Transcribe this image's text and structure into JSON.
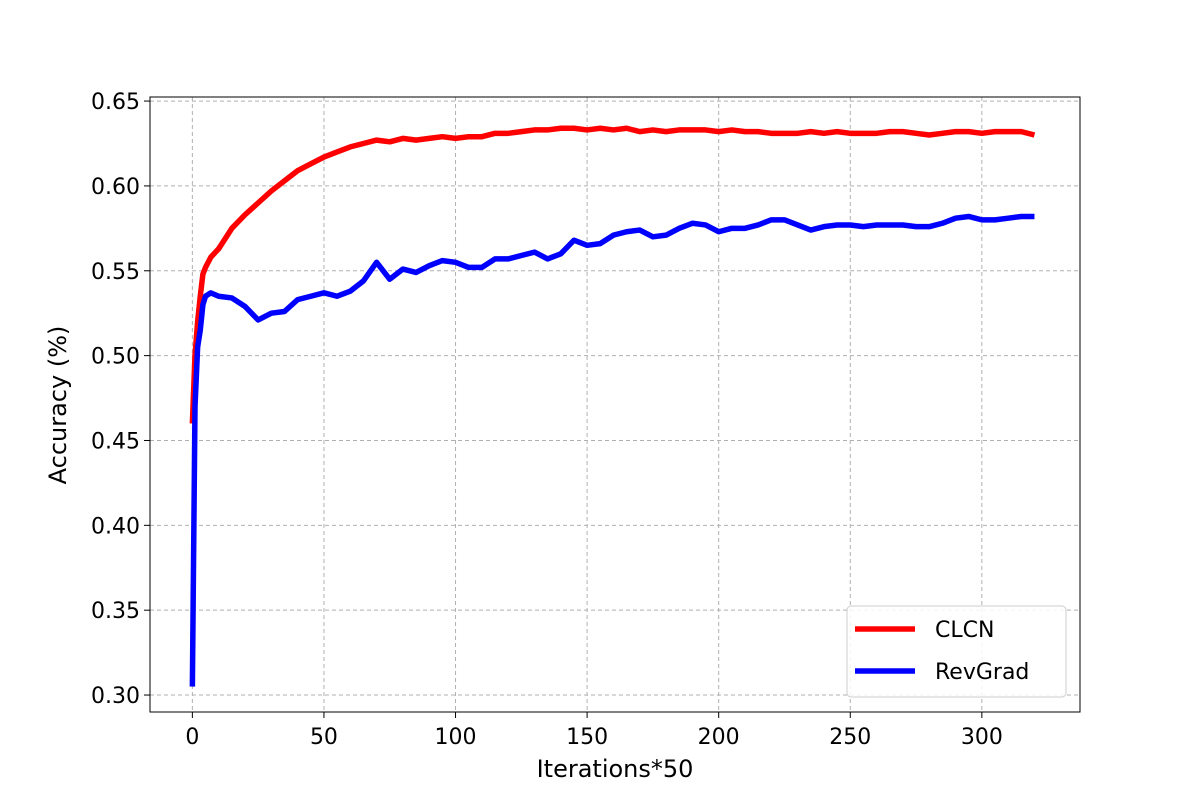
{
  "chart_data": {
    "type": "line",
    "xlabel": "Iterations*50",
    "ylabel": "Accuracy (%)",
    "x": [
      0,
      1,
      2,
      3,
      4,
      5,
      7,
      10,
      15,
      20,
      25,
      30,
      35,
      40,
      45,
      50,
      55,
      60,
      65,
      70,
      75,
      80,
      85,
      90,
      95,
      100,
      105,
      110,
      115,
      120,
      125,
      130,
      135,
      140,
      145,
      150,
      155,
      160,
      165,
      170,
      175,
      180,
      185,
      190,
      195,
      200,
      205,
      210,
      215,
      220,
      225,
      230,
      235,
      240,
      245,
      250,
      255,
      260,
      265,
      270,
      275,
      280,
      285,
      290,
      295,
      300,
      305,
      310,
      315,
      320
    ],
    "series": [
      {
        "name": "CLCN",
        "color": "#ff0000",
        "values": [
          0.46,
          0.5,
          0.52,
          0.535,
          0.548,
          0.552,
          0.558,
          0.563,
          0.575,
          0.583,
          0.59,
          0.597,
          0.603,
          0.609,
          0.613,
          0.617,
          0.62,
          0.623,
          0.625,
          0.627,
          0.626,
          0.628,
          0.627,
          0.628,
          0.629,
          0.628,
          0.629,
          0.629,
          0.631,
          0.631,
          0.632,
          0.633,
          0.633,
          0.634,
          0.634,
          0.633,
          0.634,
          0.633,
          0.634,
          0.632,
          0.633,
          0.632,
          0.633,
          0.633,
          0.633,
          0.632,
          0.633,
          0.632,
          0.632,
          0.631,
          0.631,
          0.631,
          0.632,
          0.631,
          0.632,
          0.631,
          0.631,
          0.631,
          0.632,
          0.632,
          0.631,
          0.63,
          0.631,
          0.632,
          0.632,
          0.631,
          0.632,
          0.632,
          0.632,
          0.63
        ]
      },
      {
        "name": "RevGrad",
        "color": "#0000ff",
        "values": [
          0.305,
          0.47,
          0.505,
          0.515,
          0.53,
          0.535,
          0.537,
          0.535,
          0.534,
          0.529,
          0.521,
          0.525,
          0.526,
          0.533,
          0.535,
          0.537,
          0.535,
          0.538,
          0.544,
          0.555,
          0.545,
          0.551,
          0.549,
          0.553,
          0.556,
          0.555,
          0.552,
          0.552,
          0.557,
          0.557,
          0.559,
          0.561,
          0.557,
          0.56,
          0.568,
          0.565,
          0.566,
          0.571,
          0.573,
          0.574,
          0.57,
          0.571,
          0.575,
          0.578,
          0.577,
          0.573,
          0.575,
          0.575,
          0.577,
          0.58,
          0.58,
          0.577,
          0.574,
          0.576,
          0.577,
          0.577,
          0.576,
          0.577,
          0.577,
          0.577,
          0.576,
          0.576,
          0.578,
          0.581,
          0.582,
          0.58,
          0.58,
          0.581,
          0.582,
          0.582
        ]
      }
    ],
    "xlim": [
      -16.1,
      337.3
    ],
    "xticks": [
      0,
      50,
      100,
      150,
      200,
      250,
      300
    ],
    "ylim": [
      0.29,
      0.6524
    ],
    "yticks": [
      {
        "value": 0.3,
        "label": "0.30"
      },
      0.35,
      {
        "value": 0.4,
        "label": "0.40"
      },
      0.45,
      {
        "value": 0.5,
        "label": "0.50"
      },
      0.55,
      {
        "value": 0.6,
        "label": "0.60"
      },
      0.65
    ],
    "grid": true,
    "legend": "lower right"
  }
}
